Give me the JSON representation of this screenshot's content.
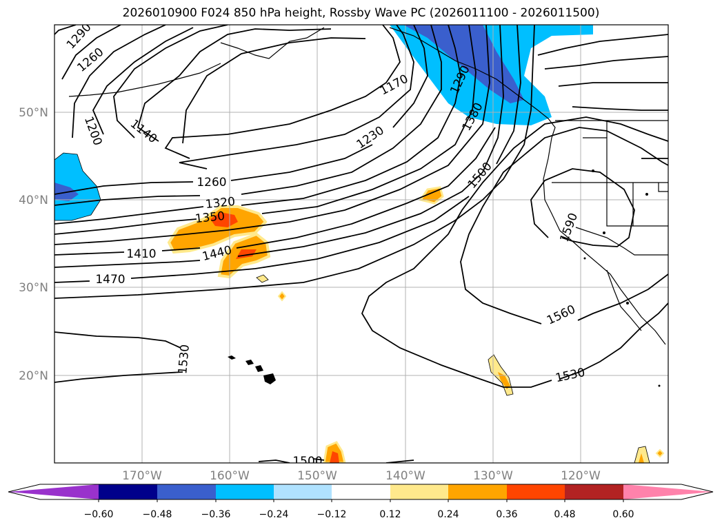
{
  "title": "2026010900 F024 850 hPa height, Rossby Wave PC (2026011100 - 2026011500)",
  "lat_labels": [
    "50°N",
    "40°N",
    "30°N",
    "20°N"
  ],
  "lon_labels": [
    "170°W",
    "160°W",
    "150°W",
    "140°W",
    "130°W",
    "120°W"
  ],
  "contour_labels": [
    "1290",
    "1260",
    "1200",
    "1140",
    "1170",
    "1230",
    "1260",
    "1320",
    "1350",
    "1410",
    "1440",
    "1470",
    "1380",
    "1500",
    "1590",
    "1560",
    "1530",
    "1530",
    "1500",
    "1290"
  ],
  "colorbar": {
    "tick_labels": [
      "−0.60",
      "−0.48",
      "−0.36",
      "−0.24",
      "−0.12",
      "0.12",
      "0.24",
      "0.36",
      "0.48",
      "0.60"
    ],
    "colors": [
      "#9932cc",
      "#00008b",
      "#3a5fcd",
      "#00bfff",
      "#b0e2ff",
      "#ffffff",
      "#ffe98c",
      "#ffa500",
      "#ff4500",
      "#b22222",
      "#ff82ab"
    ]
  }
}
